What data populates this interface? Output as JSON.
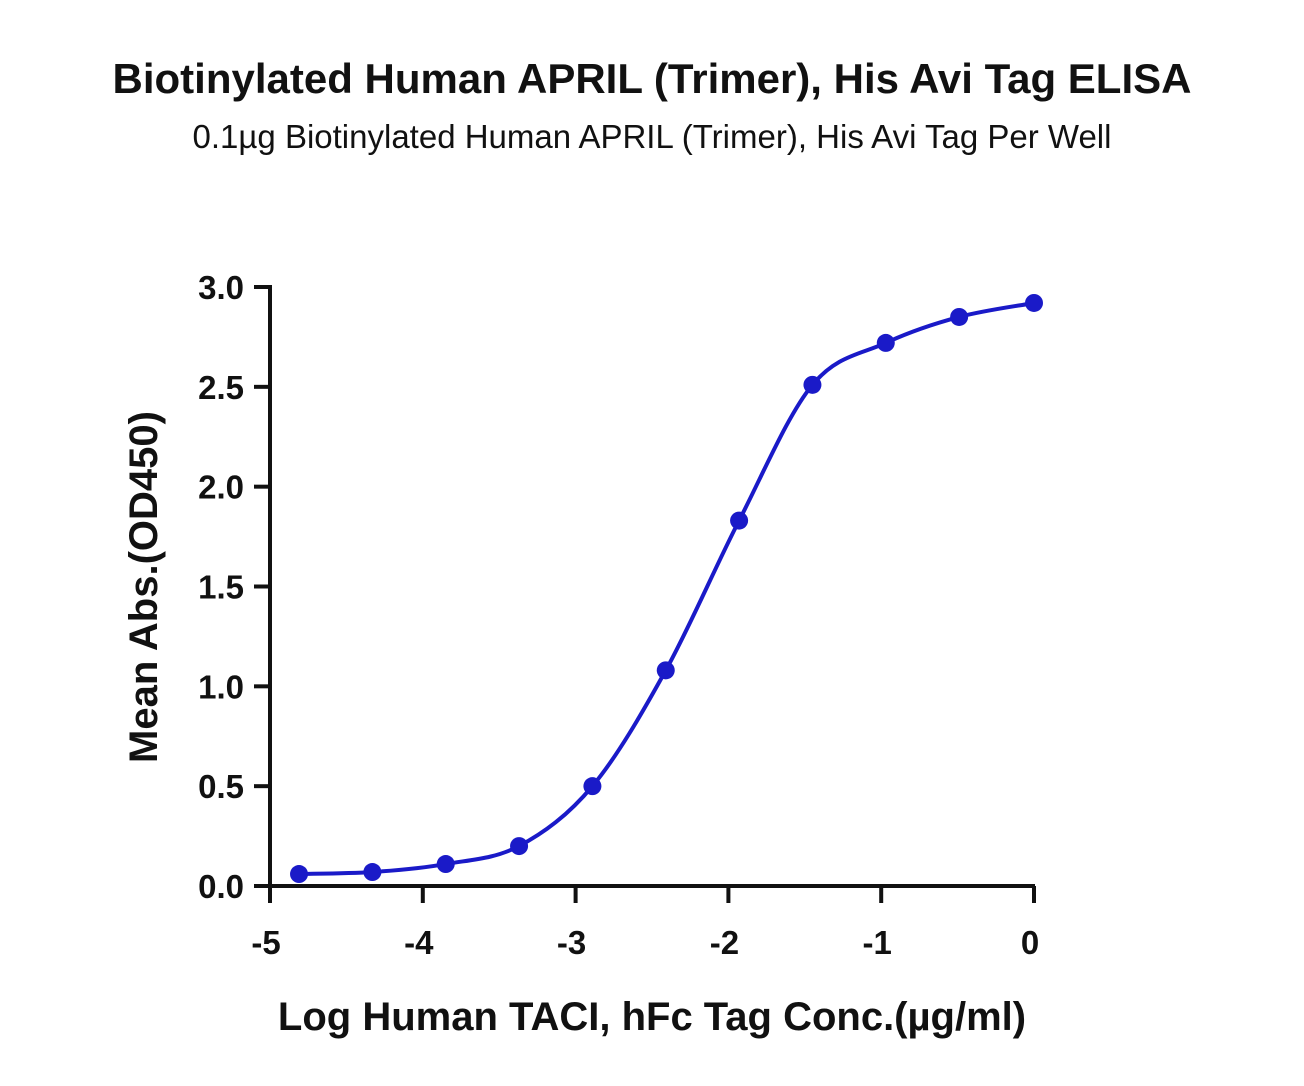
{
  "chart_data": {
    "type": "scatter",
    "title": "Biotinylated Human APRIL (Trimer), His Avi Tag ELISA",
    "subtitle": "0.1µg Biotinylated Human APRIL (Trimer), His Avi Tag Per Well",
    "xlabel": "Log Human TACI, hFc Tag Conc.(µg/ml)",
    "ylabel": "Mean Abs.(OD450)",
    "xlim": [
      -5,
      0
    ],
    "ylim": [
      0,
      3
    ],
    "xticks": [
      -5,
      -4,
      -3,
      -2,
      -1,
      0
    ],
    "xtick_labels": [
      "-5",
      "-4",
      "-3",
      "-2",
      "-1",
      "0"
    ],
    "yticks": [
      0,
      0.5,
      1,
      1.5,
      2,
      2.5,
      3
    ],
    "ytick_labels": [
      "0.0",
      "0.5",
      "1.0",
      "1.5",
      "2.0",
      "2.5",
      "3.0"
    ],
    "grid": false,
    "legend": "none",
    "color": "#1a1ac8",
    "series": [
      {
        "x": [
          -4.81,
          -4.33,
          -3.85,
          -3.37,
          -2.89,
          -2.41,
          -1.93,
          -1.45,
          -0.97,
          -0.49,
          0.0
        ],
        "y": [
          0.06,
          0.07,
          0.11,
          0.2,
          0.5,
          1.08,
          1.83,
          2.51,
          2.72,
          2.85,
          2.92
        ],
        "fit": "4PL sigmoid"
      }
    ]
  }
}
